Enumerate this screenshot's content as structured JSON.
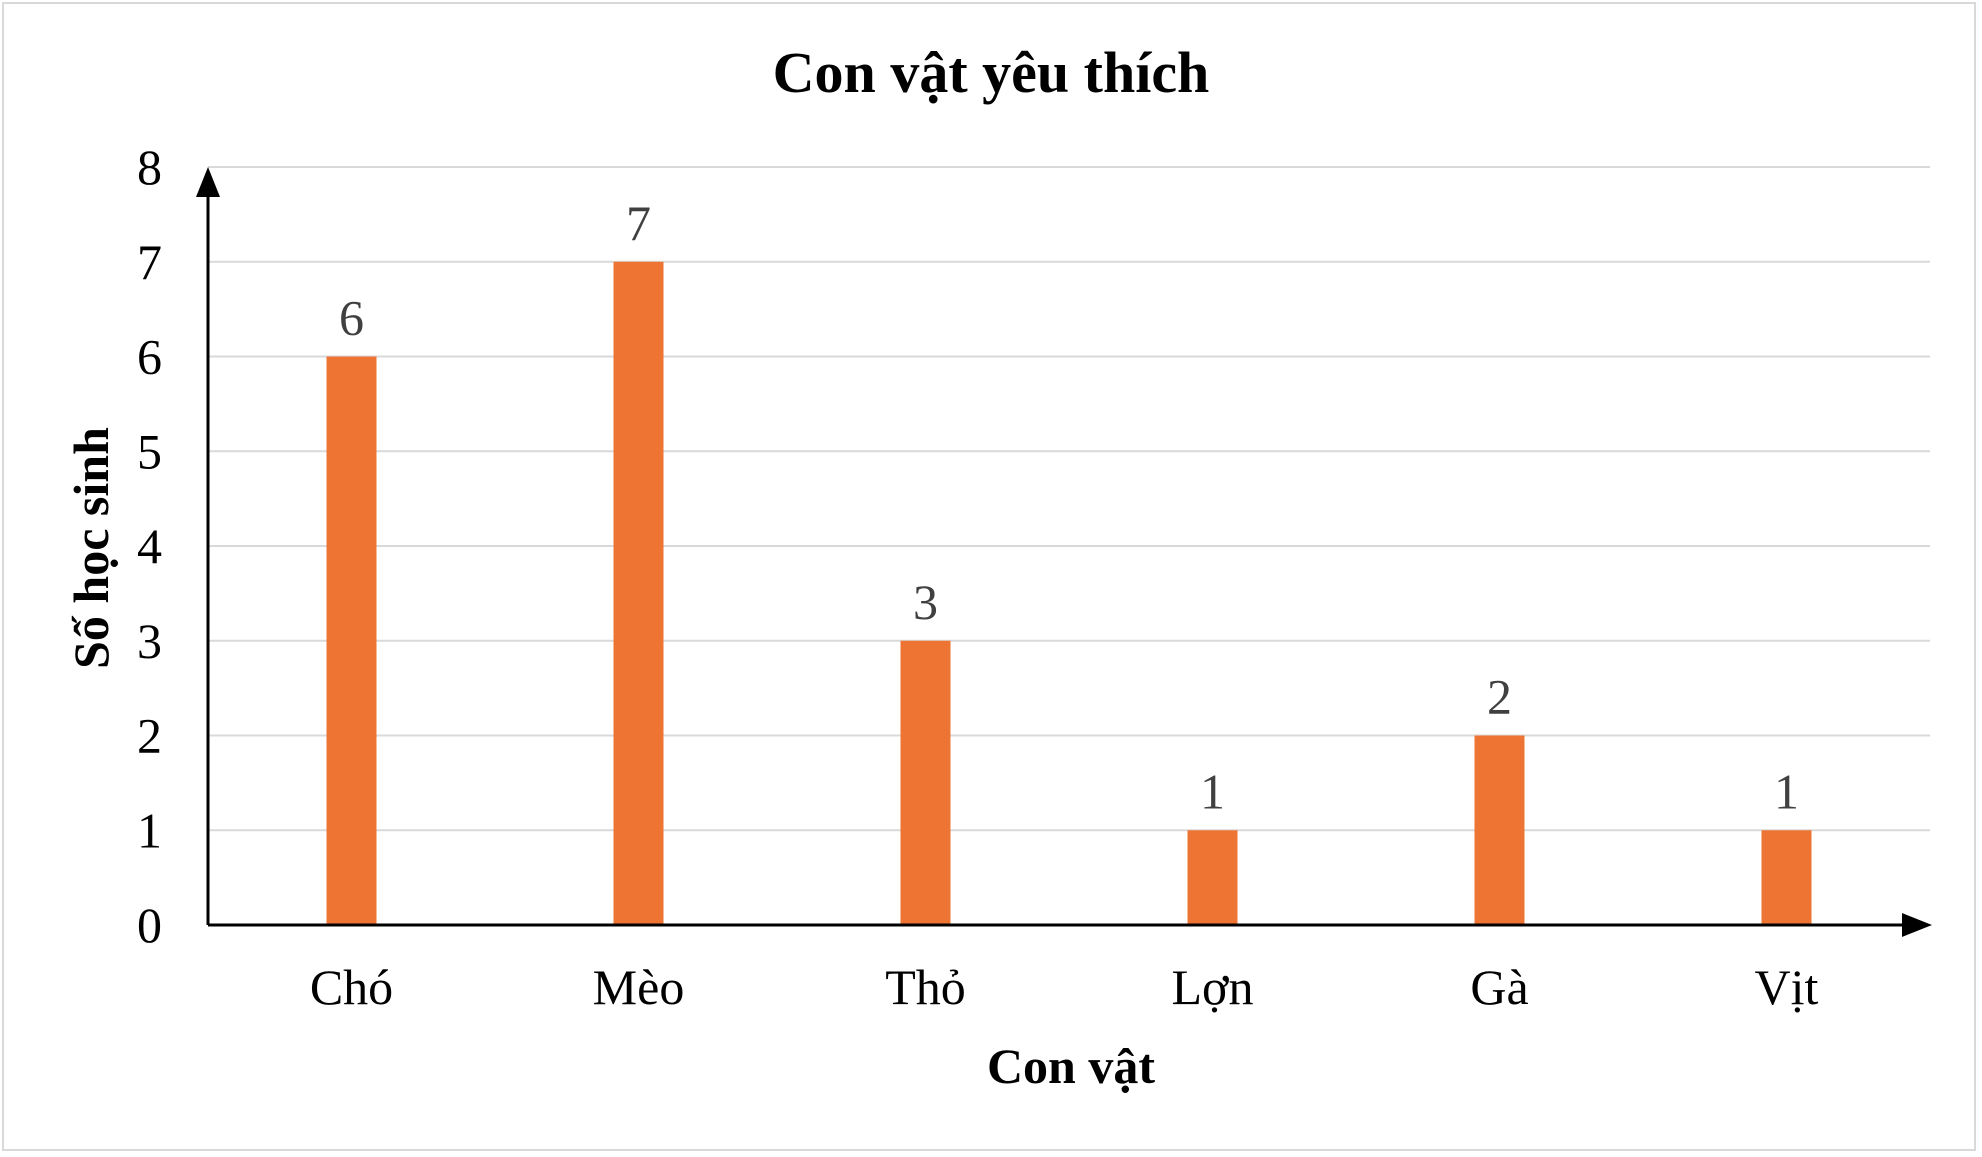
{
  "chart_data": {
    "type": "bar",
    "title": "Con vật yêu thích",
    "xlabel": "Con vật",
    "ylabel": "Số học sinh",
    "categories": [
      "Chó",
      "Mèo",
      "Thỏ",
      "Lợn",
      "Gà",
      "Vịt"
    ],
    "values": [
      6,
      7,
      3,
      1,
      2,
      1
    ],
    "ylim": [
      0,
      8
    ],
    "yticks": [
      "0",
      "1",
      "2",
      "3",
      "4",
      "5",
      "6",
      "7",
      "8"
    ],
    "grid": true,
    "legend": "none",
    "bar_color": "#ED7433",
    "grid_color": "#d9d9d9",
    "data_label_color": "#404040"
  }
}
